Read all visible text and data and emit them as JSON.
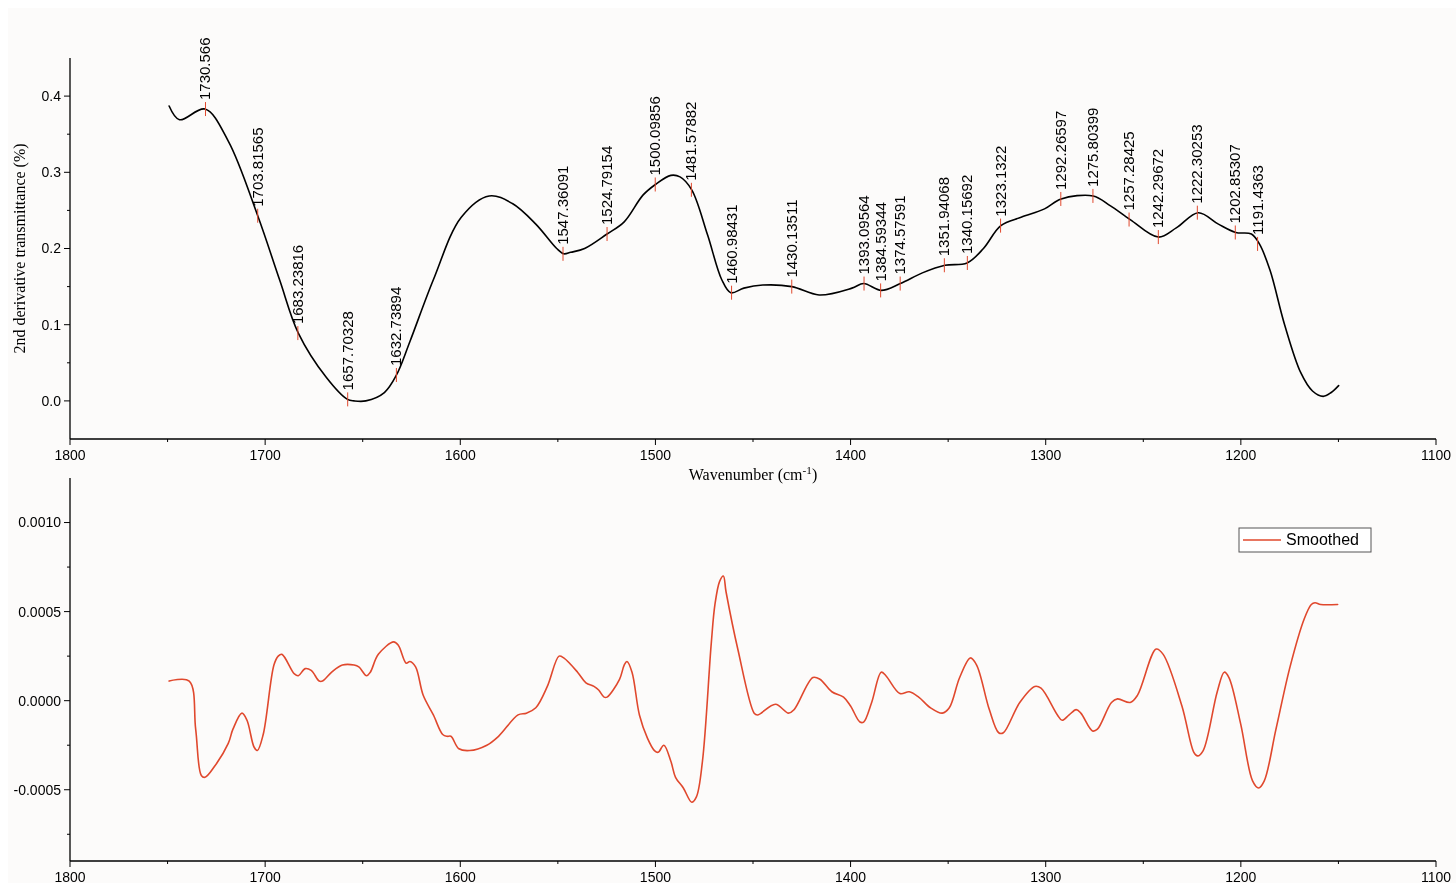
{
  "chart_data": [
    {
      "type": "line",
      "xlabel": "Wavenumber (cm$^{-1}$)",
      "ylabel": "2nd derivative transmittance (%)",
      "xlim": [
        1800,
        1100
      ],
      "xticks": [
        1800,
        {
          "value": 1750,
          "label": null
        },
        1700,
        {
          "value": 1650,
          "label": null
        },
        1600,
        {
          "value": 1550,
          "label": null
        },
        1500,
        {
          "value": 1450,
          "label": null
        },
        1400,
        {
          "value": 1350,
          "label": null
        },
        1300,
        {
          "value": 1250,
          "label": null
        },
        1200,
        {
          "value": 1150,
          "label": null
        },
        1100
      ],
      "ylim": [
        -0.05,
        0.45
      ],
      "yticks": [
        {
          "value": 0,
          "label": "0.0"
        },
        {
          "value": 0.05,
          "label": null
        },
        {
          "value": 0.1,
          "label": "0.1"
        },
        {
          "value": 0.15,
          "label": null
        },
        {
          "value": 0.2,
          "label": "0.2"
        },
        {
          "value": 0.25,
          "label": null
        },
        {
          "value": 0.3,
          "label": "0.3"
        },
        {
          "value": 0.35,
          "label": null
        },
        {
          "value": 0.4,
          "label": "0.4"
        }
      ],
      "series": [
        {
          "color": "#000000",
          "x": [
            1749.2,
            1743.9,
            1730.8,
            1718.9,
            1703.8,
            1692.6,
            1683,
            1668.7,
            1657.8,
            1654.4,
            1648.4,
            1638.9,
            1632.7,
            1625.8,
            1613.8,
            1599.5,
            1585.2,
            1573.3,
            1561.3,
            1550.6,
            1547,
            1543.4,
            1536.3,
            1524.8,
            1516,
            1506.4,
            1500,
            1492.1,
            1487.4,
            1481.4,
            1473.3,
            1466,
            1461.4,
            1454.7,
            1445,
            1430.1,
            1416.1,
            1399.3,
            1393.3,
            1384.3,
            1374.5,
            1363.2,
            1351.6,
            1340.3,
            1331.9,
            1323,
            1312.6,
            1300.6,
            1292.1,
            1275.7,
            1266.8,
            1256.7,
            1242.3,
            1233.1,
            1221.8,
            1211.5,
            1202.6,
            1194.6,
            1190.5,
            1185,
            1177.7,
            1169.3,
            1163.3,
            1157.8,
            1153.7,
            1149.9
          ],
          "values": [
            0.387,
            0.369,
            0.383,
            0.341,
            0.243,
            0.159,
            0.089,
            0.031,
            0.002,
            0.0,
            0.0,
            0.011,
            0.034,
            0.078,
            0.159,
            0.241,
            0.269,
            0.259,
            0.232,
            0.2,
            0.193,
            0.195,
            0.2,
            0.219,
            0.235,
            0.27,
            0.284,
            0.296,
            0.294,
            0.277,
            0.218,
            0.159,
            0.142,
            0.148,
            0.152,
            0.15,
            0.139,
            0.148,
            0.154,
            0.145,
            0.154,
            0.168,
            0.178,
            0.181,
            0.2,
            0.23,
            0.241,
            0.252,
            0.265,
            0.269,
            0.256,
            0.238,
            0.215,
            0.227,
            0.247,
            0.232,
            0.221,
            0.219,
            0.206,
            0.171,
            0.101,
            0.037,
            0.013,
            0.006,
            0.011,
            0.02
          ]
        }
      ],
      "annotations": [
        {
          "text": "1730.566",
          "x": 1730.566,
          "y": 0.383
        },
        {
          "text": "1703.81565",
          "x": 1703.81565,
          "y": 0.243
        },
        {
          "text": "1683.23816",
          "x": 1683.23816,
          "y": 0.089
        },
        {
          "text": "1657.70328",
          "x": 1657.70328,
          "y": 0.002
        },
        {
          "text": "1632.73894",
          "x": 1632.73894,
          "y": 0.034
        },
        {
          "text": "1547.36091",
          "x": 1547.36091,
          "y": 0.193
        },
        {
          "text": "1524.79154",
          "x": 1524.79154,
          "y": 0.219
        },
        {
          "text": "1500.09856",
          "x": 1500.09856,
          "y": 0.284
        },
        {
          "text": "1481.57882",
          "x": 1481.57882,
          "y": 0.277
        },
        {
          "text": "1460.98431",
          "x": 1460.98431,
          "y": 0.142
        },
        {
          "text": "1430.13511",
          "x": 1430.13511,
          "y": 0.15
        },
        {
          "text": "1393.09564",
          "x": 1393.09564,
          "y": 0.154
        },
        {
          "text": "1384.59344",
          "x": 1384.59344,
          "y": 0.145
        },
        {
          "text": "1374.57591",
          "x": 1374.57591,
          "y": 0.154
        },
        {
          "text": "1351.94068",
          "x": 1351.94068,
          "y": 0.178
        },
        {
          "text": "1340.15692",
          "x": 1340.15692,
          "y": 0.181
        },
        {
          "text": "1323.1322",
          "x": 1323.1322,
          "y": 0.23
        },
        {
          "text": "1292.26597",
          "x": 1292.26597,
          "y": 0.265
        },
        {
          "text": "1275.80399",
          "x": 1275.80399,
          "y": 0.269
        },
        {
          "text": "1257.28425",
          "x": 1257.28425,
          "y": 0.238
        },
        {
          "text": "1242.29672",
          "x": 1242.29672,
          "y": 0.215
        },
        {
          "text": "1222.30253",
          "x": 1222.30253,
          "y": 0.247
        },
        {
          "text": "1202.85307",
          "x": 1202.85307,
          "y": 0.221
        },
        {
          "text": "1191.4363",
          "x": 1191.4363,
          "y": 0.206
        }
      ]
    },
    {
      "type": "line",
      "legend": "top right",
      "xlim": [
        1800,
        1100
      ],
      "xticks": [
        1800,
        {
          "value": 1750,
          "label": null
        },
        1700,
        {
          "value": 1650,
          "label": null
        },
        1600,
        {
          "value": 1550,
          "label": null
        },
        1500,
        {
          "value": 1450,
          "label": null
        },
        1400,
        {
          "value": 1350,
          "label": null
        },
        1300,
        {
          "value": 1250,
          "label": null
        },
        1200,
        {
          "value": 1150,
          "label": null
        },
        1100
      ],
      "ylim": [
        -0.0009,
        0.00125
      ],
      "yticks": [
        {
          "value": -0.00075,
          "label": null
        },
        {
          "value": -0.0005,
          "label": "-0.0005"
        },
        {
          "value": -0.00025,
          "label": null
        },
        {
          "value": 0,
          "label": "0.0000"
        },
        {
          "value": 0.00025,
          "label": null
        },
        {
          "value": 0.0005,
          "label": "0.0005"
        },
        {
          "value": 0.00075,
          "label": null
        },
        {
          "value": 0.001,
          "label": "0.0010"
        }
      ],
      "series": [
        {
          "name": "Smoothed",
          "color": "#e0482d",
          "x": [
            1749.2,
            1738.9,
            1735.6,
            1732.7,
            1730.8,
            1726,
            1718.9,
            1716.5,
            1711.9,
            1709.3,
            1705.7,
            1704,
            1701,
            1695.5,
            1693.3,
            1691.4,
            1685,
            1683,
            1679.5,
            1676.4,
            1672.3,
            1670.6,
            1665.9,
            1660.4,
            1654.4,
            1652,
            1648,
            1646.1,
            1642,
            1634.1,
            1631.7,
            1627.7,
            1625.8,
            1622.9,
            1619,
            1613.8,
            1609,
            1606.7,
            1604.8,
            1600.7,
            1595.2,
            1586.4,
            1580.4,
            1570.4,
            1566.1,
            1561.3,
            1555.4,
            1549.4,
            1547,
            1539.9,
            1535.6,
            1531.5,
            1529.1,
            1526.3,
            1524.8,
            1518.4,
            1516,
            1514.6,
            1512,
            1508.2,
            1504.1,
            1500.5,
            1498.6,
            1495.7,
            1492.1,
            1489.7,
            1485.7,
            1481.4,
            1479,
            1475.9,
            1471.4,
            1469.5,
            1467.1,
            1465.2,
            1463.8,
            1457.8,
            1449.4,
            1447.7,
            1438.5,
            1431.8,
            1428.9,
            1419.3,
            1415.7,
            1409.6,
            1403.6,
            1400,
            1395.2,
            1393.3,
            1389.2,
            1384.3,
            1381.9,
            1374.7,
            1369.9,
            1365.1,
            1359,
            1353,
            1349.4,
            1344.1,
            1338.6,
            1335.4,
            1328.9,
            1324.1,
            1321.7,
            1313.3,
            1305.6,
            1302.4,
            1294,
            1291.6,
            1288,
            1284.4,
            1282,
            1276,
            1273.5,
            1266.3,
            1263.2,
            1256.7,
            1253,
            1243.4,
            1239.8,
            1230.2,
            1224.1,
            1222.2,
            1219.3,
            1212.1,
            1208.5,
            1206.1,
            1200.1,
            1194,
            1190.9,
            1188,
            1182,
            1174.8,
            1167.5,
            1163.9,
            1162,
            1159.1,
            1150.4
          ],
          "values": [
            0.00011,
            0.00011,
            -0.00016,
            -0.00042,
            -0.00043,
            -0.00037,
            -0.00024,
            -0.00016,
            -7e-05,
            -0.00011,
            -0.00026,
            -0.00028,
            -0.00019,
            0.0002,
            0.00025,
            0.00026,
            0.00015,
            0.00014,
            0.00018,
            0.00017,
            0.00011,
            0.00011,
            0.00016,
            0.0002,
            0.0002,
            0.00019,
            0.00014,
            0.00016,
            0.00026,
            0.00033,
            0.00031,
            0.00021,
            0.00022,
            0.00019,
            3e-05,
            -8e-05,
            -0.00019,
            -0.0002,
            -0.0002,
            -0.00027,
            -0.00028,
            -0.00025,
            -0.0002,
            -8e-05,
            -7e-05,
            -4e-05,
            8e-05,
            0.00025,
            0.00024,
            0.00016,
            0.0001,
            8e-05,
            6e-05,
            2e-05,
            2e-05,
            0.00012,
            0.0002,
            0.00022,
            0.00016,
            -8e-05,
            -0.00021,
            -0.00028,
            -0.00029,
            -0.00025,
            -0.00034,
            -0.00043,
            -0.00049,
            -0.00057,
            -0.00054,
            -0.00034,
            0.00032,
            0.00054,
            0.00067,
            0.0007,
            0.00061,
            0.00029,
            -7e-05,
            -8e-05,
            -2e-05,
            -7e-05,
            -5e-05,
            0.00013,
            0.00012,
            5e-05,
            2e-05,
            -3e-05,
            -0.00012,
            -0.00012,
            -1e-05,
            0.00016,
            0.00014,
            4e-05,
            5e-05,
            2e-05,
            -4e-05,
            -7e-05,
            -4e-05,
            0.00013,
            0.00024,
            0.0002,
            -5e-05,
            -0.00018,
            -0.00018,
            -1e-05,
            8e-05,
            7e-05,
            -8e-05,
            -0.00011,
            -8e-05,
            -5e-05,
            -7e-05,
            -0.00017,
            -0.00016,
            -1e-05,
            1e-05,
            -1e-05,
            3e-05,
            0.00029,
            0.00026,
            -3e-05,
            -0.00029,
            -0.00031,
            -0.00028,
            5e-05,
            0.00016,
            0.00013,
            -0.00013,
            -0.00045,
            -0.00049,
            -0.00045,
            -0.00016,
            0.00019,
            0.00046,
            0.00054,
            0.00055,
            0.00054,
            0.00054
          ]
        }
      ]
    }
  ]
}
